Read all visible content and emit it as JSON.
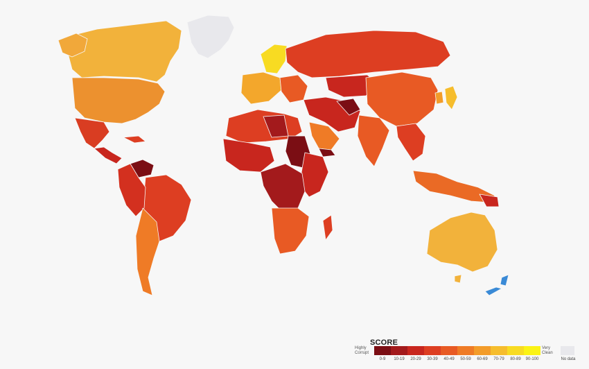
{
  "colors": {
    "ocean": "#f7f7f7",
    "scale": [
      "#7b0e14",
      "#a31a1c",
      "#c8261e",
      "#dd3e22",
      "#e85a24",
      "#ef7b26",
      "#f39c2a",
      "#f6bd2d",
      "#f8db22",
      "#fbf315"
    ],
    "no_data": "#e8e8ec",
    "highlight": "#3a8ad6"
  },
  "legend": {
    "title": "SCORE",
    "low_label": "Highly\nCorrupt",
    "high_label": "Very\nClean",
    "ranges": [
      "0-9",
      "10-19",
      "20-29",
      "30-39",
      "40-49",
      "50-59",
      "60-69",
      "70-79",
      "80-89",
      "90-100"
    ],
    "no_data_label": "No data"
  }
}
